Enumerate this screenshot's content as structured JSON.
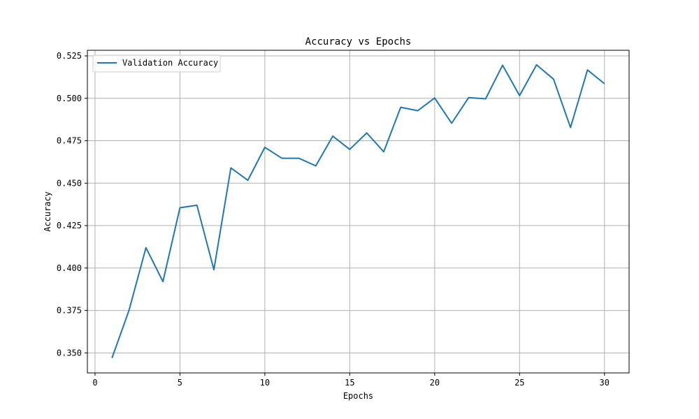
{
  "chart_data": {
    "type": "line",
    "title": "Accuracy vs Epochs",
    "xlabel": "Epochs",
    "ylabel": "Accuracy",
    "xlim": [
      -0.45,
      31.45
    ],
    "ylim": [
      0.3382,
      0.5283
    ],
    "xticks": [
      0,
      5,
      10,
      15,
      20,
      25,
      30
    ],
    "xtick_labels": [
      "0",
      "5",
      "10",
      "15",
      "20",
      "25",
      "30"
    ],
    "yticks": [
      0.35,
      0.375,
      0.4,
      0.425,
      0.45,
      0.475,
      0.5,
      0.525
    ],
    "ytick_labels": [
      "0.350",
      "0.375",
      "0.400",
      "0.425",
      "0.450",
      "0.475",
      "0.500",
      "0.525"
    ],
    "grid": true,
    "legend_position": "upper-left",
    "series": [
      {
        "name": "Validation Accuracy",
        "color": "#1f77b4",
        "x": [
          1,
          2,
          3,
          4,
          5,
          6,
          7,
          8,
          9,
          10,
          11,
          12,
          13,
          14,
          15,
          16,
          17,
          18,
          19,
          20,
          21,
          22,
          23,
          24,
          25,
          26,
          27,
          28,
          29,
          30
        ],
        "y": [
          0.347,
          0.375,
          0.412,
          0.392,
          0.4355,
          0.437,
          0.399,
          0.459,
          0.4517,
          0.4711,
          0.4647,
          0.4647,
          0.4602,
          0.4777,
          0.4699,
          0.4796,
          0.4685,
          0.4947,
          0.4927,
          0.5002,
          0.4853,
          0.5004,
          0.4997,
          0.5195,
          0.5016,
          0.5197,
          0.5113,
          0.4828,
          0.5167,
          0.5086
        ]
      }
    ]
  }
}
